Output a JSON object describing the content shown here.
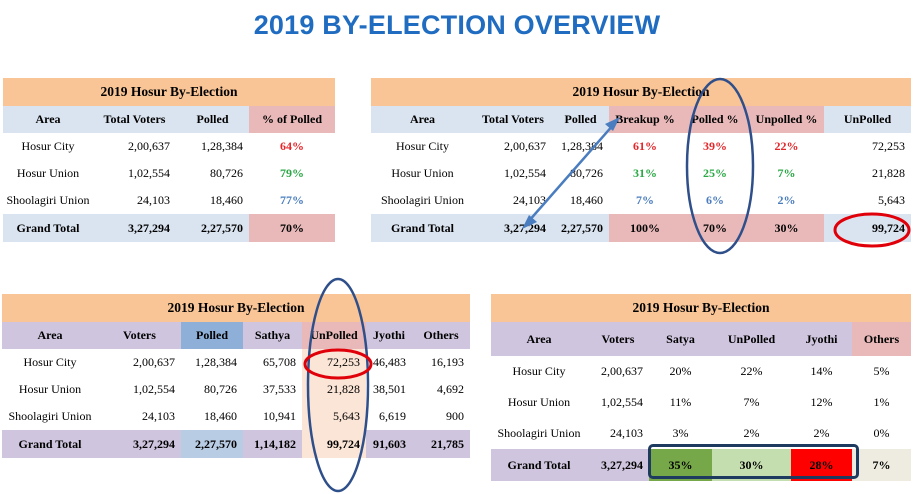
{
  "title": "2019 BY-ELECTION OVERVIEW",
  "table1": {
    "caption": "2019 Hosur By-Election",
    "headers": [
      "Area",
      "Total Voters",
      "Polled",
      "% of Polled"
    ],
    "rows": [
      {
        "area": "Hosur City",
        "voters": "2,00,637",
        "polled": "1,28,384",
        "pct": "64%"
      },
      {
        "area": "Hosur Union",
        "voters": "1,02,554",
        "polled": "80,726",
        "pct": "79%"
      },
      {
        "area": "Shoolagiri Union",
        "voters": "24,103",
        "polled": "18,460",
        "pct": "77%"
      }
    ],
    "total": {
      "label": "Grand  Total",
      "voters": "3,27,294",
      "polled": "2,27,570",
      "pct": "70%"
    }
  },
  "table2": {
    "caption": "2019 Hosur By-Election",
    "headers": [
      "Area",
      "Total  Voters",
      "Polled",
      "Breakup  %",
      "Polled  %",
      "Unpolled  %",
      "UnPolled"
    ],
    "rows": [
      {
        "area": "Hosur City",
        "voters": "2,00,637",
        "polled": "1,28,384",
        "breakup": "61%",
        "polledpct": "39%",
        "unpolledpct": "22%",
        "unpolled": "72,253"
      },
      {
        "area": "Hosur Union",
        "voters": "1,02,554",
        "polled": "80,726",
        "breakup": "31%",
        "polledpct": "25%",
        "unpolledpct": "7%",
        "unpolled": "21,828"
      },
      {
        "area": "Shoolagiri Union",
        "voters": "24,103",
        "polled": "18,460",
        "breakup": "7%",
        "polledpct": "6%",
        "unpolledpct": "2%",
        "unpolled": "5,643"
      }
    ],
    "total": {
      "label": "Grand  Total",
      "voters": "3,27,294",
      "polled": "2,27,570",
      "breakup": "100%",
      "polledpct": "70%",
      "unpolledpct": "30%",
      "unpolled": "99,724"
    }
  },
  "table3": {
    "caption": "2019 Hosur By-Election",
    "headers": [
      "Area",
      "Voters",
      "Polled",
      "Sathya",
      "UnPolled",
      "Jyothi",
      "Others"
    ],
    "rows": [
      {
        "area": "Hosur City",
        "voters": "2,00,637",
        "polled": "1,28,384",
        "sathya": "65,708",
        "unpolled": "72,253",
        "jyothi": "46,483",
        "others": "16,193"
      },
      {
        "area": "Hosur Union",
        "voters": "1,02,554",
        "polled": "80,726",
        "sathya": "37,533",
        "unpolled": "21,828",
        "jyothi": "38,501",
        "others": "4,692"
      },
      {
        "area": "Shoolagiri Union",
        "voters": "24,103",
        "polled": "18,460",
        "sathya": "10,941",
        "unpolled": "5,643",
        "jyothi": "6,619",
        "others": "900"
      }
    ],
    "total": {
      "label": "Grand  Total",
      "voters": "3,27,294",
      "polled": "2,27,570",
      "sathya": "1,14,182",
      "unpolled": "99,724",
      "jyothi": "91,603",
      "others": "21,785"
    }
  },
  "table4": {
    "caption": "2019 Hosur By-Election",
    "headers": [
      "Area",
      "Voters",
      "Satya",
      "UnPolled",
      "Jyothi",
      "Others"
    ],
    "rows": [
      {
        "area": "Hosur City",
        "voters": "2,00,637",
        "satya": "20%",
        "unpolled": "22%",
        "jyothi": "14%",
        "others": "5%"
      },
      {
        "area": "Hosur Union",
        "voters": "1,02,554",
        "satya": "11%",
        "unpolled": "7%",
        "jyothi": "12%",
        "others": "1%"
      },
      {
        "area": "Shoolagiri Union",
        "voters": "24,103",
        "satya": "3%",
        "unpolled": "2%",
        "jyothi": "2%",
        "others": "0%"
      }
    ],
    "total": {
      "label": "Grand  Total",
      "voters": "3,27,294",
      "satya": "35%",
      "unpolled": "30%",
      "jyothi": "28%",
      "others": "7%"
    }
  },
  "colors": {
    "title": "#1f6cc0",
    "caption_bg": "#f9c596",
    "header_blue": "#dae4f0",
    "header_purple": "#cfc5de",
    "pink": "#e9b9b9",
    "annotation": "#2f4f8a",
    "highlight_red": "#e0000a",
    "satya_green": "#76a84a",
    "unpolled_green": "#c5deb0",
    "jyothi_red": "#ff0000"
  }
}
